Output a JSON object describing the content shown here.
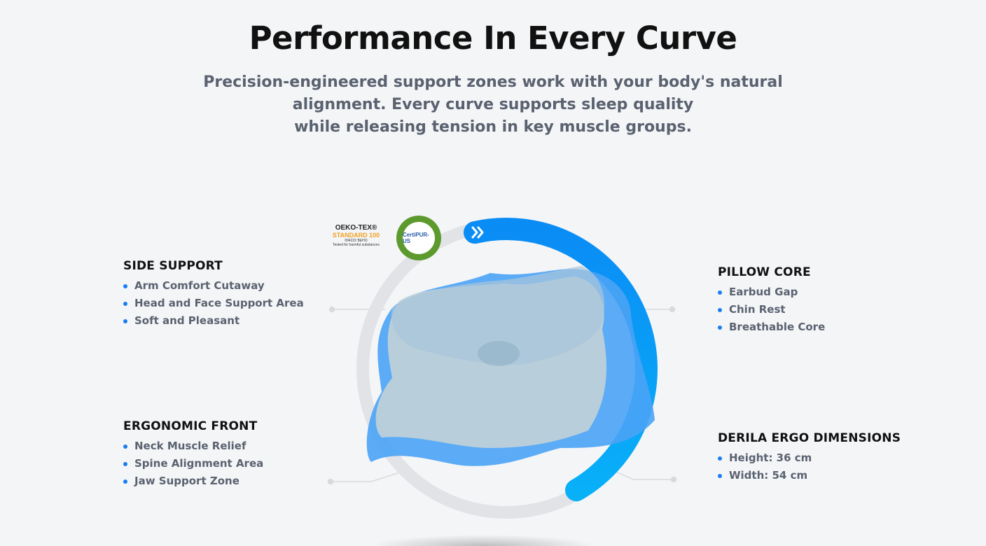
{
  "header": {
    "title": "Performance In Every Curve",
    "subtitle_lines": [
      "Precision-engineered support zones work with your body's natural",
      "alignment. Every curve supports sleep quality",
      "while releasing tension in key muscle groups."
    ]
  },
  "badges": {
    "oeko_tex": {
      "name": "OEKO-TEX®",
      "standard": "STANDARD 100",
      "code": "094222 BEHO",
      "note": "Tested for harmful substances"
    },
    "certipur": {
      "name": "CertiPUR-US"
    }
  },
  "features": {
    "side_support": {
      "title": "SIDE SUPPORT",
      "items": [
        "Arm Comfort Cutaway",
        "Head and Face Support Area",
        "Soft and Pleasant"
      ]
    },
    "ergonomic_front": {
      "title": "ERGONOMIC FRONT",
      "items": [
        "Neck Muscle Relief",
        "Spine Alignment Area",
        "Jaw Support Zone"
      ]
    },
    "pillow_core": {
      "title": "PILLOW CORE",
      "items": [
        "Earbud Gap",
        "Chin Rest",
        "Breathable Core"
      ]
    },
    "dimensions": {
      "title": "DERILA ERGO DIMENSIONS",
      "items": [
        "Height: 36 cm",
        "Width: 54 cm"
      ]
    }
  },
  "colors": {
    "accent": "#1a7df0",
    "ring_blue": "#0a8cf5",
    "ring_gray": "#e2e3e6"
  },
  "icons": {
    "ring_start": "double-chevron-right-icon"
  }
}
